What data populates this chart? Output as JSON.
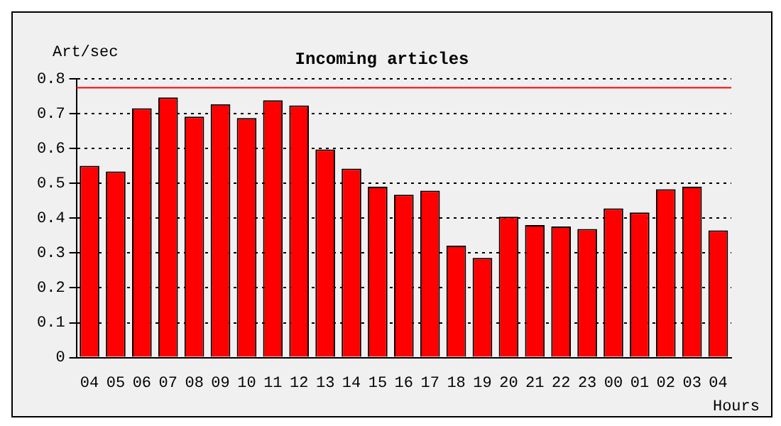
{
  "chart_data": {
    "type": "bar",
    "title": "Incoming articles",
    "ylabel": "Art/sec",
    "xlabel": "Hours",
    "categories": [
      "04",
      "05",
      "06",
      "07",
      "08",
      "09",
      "10",
      "11",
      "12",
      "13",
      "14",
      "15",
      "16",
      "17",
      "18",
      "19",
      "20",
      "21",
      "22",
      "23",
      "00",
      "01",
      "02",
      "03",
      "04"
    ],
    "values": [
      0.55,
      0.534,
      0.715,
      0.746,
      0.691,
      0.727,
      0.687,
      0.738,
      0.723,
      0.597,
      0.542,
      0.49,
      0.467,
      0.479,
      0.321,
      0.286,
      0.404,
      0.38,
      0.376,
      0.369,
      0.428,
      0.416,
      0.483,
      0.49,
      0.365
    ],
    "color": "#ff0000",
    "ylim": [
      0,
      0.8
    ],
    "yticks": [
      0,
      0.1,
      0.2,
      0.3,
      0.4,
      0.5,
      0.6,
      0.7,
      0.8
    ],
    "grid": "y",
    "line_style": "dotted",
    "ref_lines": [
      {
        "axis": "y",
        "value": 0.774,
        "color": "#ff0000"
      }
    ]
  }
}
